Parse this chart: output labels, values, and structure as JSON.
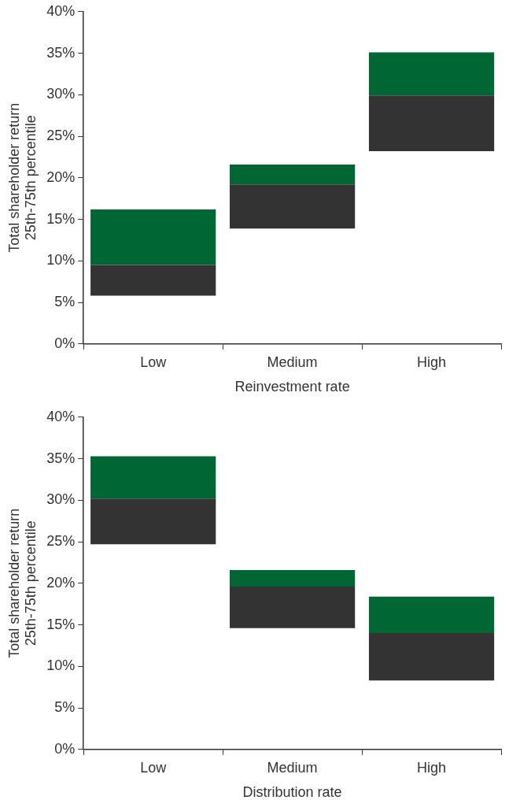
{
  "chart_data": [
    {
      "type": "bar",
      "xlabel": "Reinvestment rate",
      "ylabel": "Total shareholder return\n25th-75th percentile",
      "categories": [
        "Low",
        "Medium",
        "High"
      ],
      "series": [
        {
          "color": "#333333",
          "base": [
            5.8,
            13.9,
            23.2
          ],
          "values": [
            3.7,
            5.3,
            6.7
          ]
        },
        {
          "color": "#006633",
          "base": [
            9.5,
            19.2,
            29.9
          ],
          "values": [
            6.7,
            2.4,
            5.2
          ]
        }
      ],
      "ylim": [
        0,
        40
      ],
      "yticks": [
        {
          "value": 0,
          "label": "0%"
        },
        {
          "value": 5,
          "label": "5%"
        },
        {
          "value": 10,
          "label": "10%"
        },
        {
          "value": 15,
          "label": "15%"
        },
        {
          "value": 20,
          "label": "20%"
        },
        {
          "value": 25,
          "label": "25%"
        },
        {
          "value": 30,
          "label": "30%"
        },
        {
          "value": 35,
          "label": "35%"
        },
        {
          "value": 40,
          "label": "40%"
        }
      ],
      "grid": false,
      "legend": false
    },
    {
      "type": "bar",
      "xlabel": "Distribution rate",
      "ylabel": "Total shareholder return\n25th-75th percentile",
      "categories": [
        "Low",
        "Medium",
        "High"
      ],
      "series": [
        {
          "color": "#333333",
          "base": [
            24.7,
            14.6,
            8.3
          ],
          "values": [
            5.5,
            5.0,
            5.7
          ]
        },
        {
          "color": "#006633",
          "base": [
            30.2,
            19.6,
            14.0
          ],
          "values": [
            5.1,
            2.0,
            4.4
          ]
        }
      ],
      "ylim": [
        0,
        40
      ],
      "yticks": [
        {
          "value": 0,
          "label": "0%"
        },
        {
          "value": 5,
          "label": "5%"
        },
        {
          "value": 10,
          "label": "10%"
        },
        {
          "value": 15,
          "label": "15%"
        },
        {
          "value": 20,
          "label": "20%"
        },
        {
          "value": 25,
          "label": "25%"
        },
        {
          "value": 30,
          "label": "30%"
        },
        {
          "value": 35,
          "label": "35%"
        },
        {
          "value": 40,
          "label": "40%"
        }
      ],
      "grid": false,
      "legend": false
    }
  ]
}
